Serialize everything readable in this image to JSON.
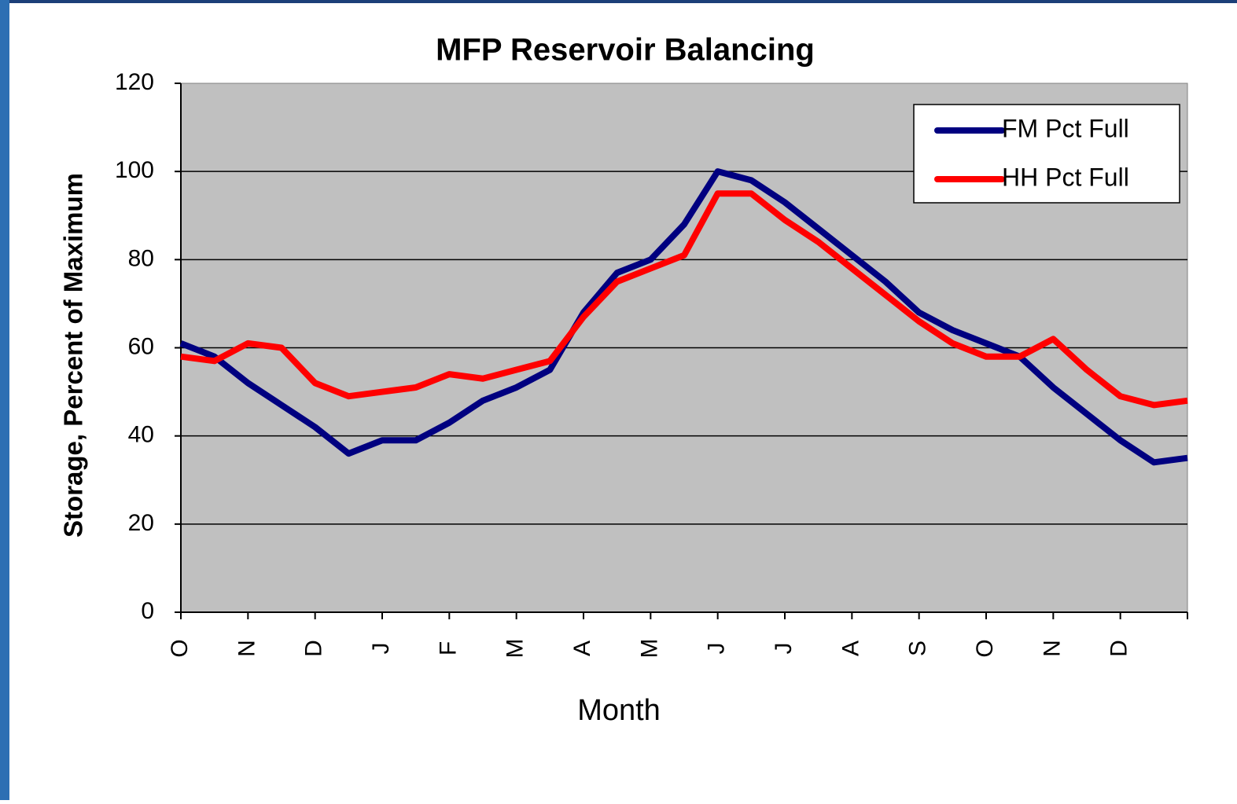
{
  "chart_data": {
    "type": "line",
    "title": "MFP Reservoir Balancing",
    "x_label": "Month",
    "y_label": "Storage, Percent of Maximum",
    "categories": [
      "O",
      null,
      "N",
      null,
      "D",
      null,
      "J",
      null,
      "F",
      null,
      "M",
      null,
      "A",
      null,
      "M",
      null,
      "J",
      null,
      "J",
      null,
      "A",
      null,
      "S",
      null,
      "O",
      null,
      "N",
      null,
      "D",
      null,
      null
    ],
    "series": [
      {
        "name": "FM Pct Full",
        "color": "#000080",
        "values": [
          61,
          58,
          52,
          47,
          42,
          36,
          39,
          39,
          43,
          48,
          51,
          55,
          68,
          77,
          80,
          88,
          100,
          98,
          93,
          87,
          81,
          75,
          68,
          64,
          61,
          58,
          51,
          45,
          39,
          34,
          35
        ]
      },
      {
        "name": "HH Pct Full",
        "color": "#ff0000",
        "values": [
          58,
          57,
          61,
          60,
          52,
          49,
          50,
          51,
          54,
          53,
          55,
          57,
          67,
          75,
          78,
          81,
          95,
          95,
          89,
          84,
          78,
          72,
          66,
          61,
          58,
          58,
          62,
          55,
          49,
          47,
          48
        ]
      }
    ],
    "ylim": [
      0,
      120
    ],
    "yticks": [
      0,
      20,
      40,
      60,
      80,
      100,
      120
    ],
    "grid": true,
    "legend": "upper right"
  }
}
